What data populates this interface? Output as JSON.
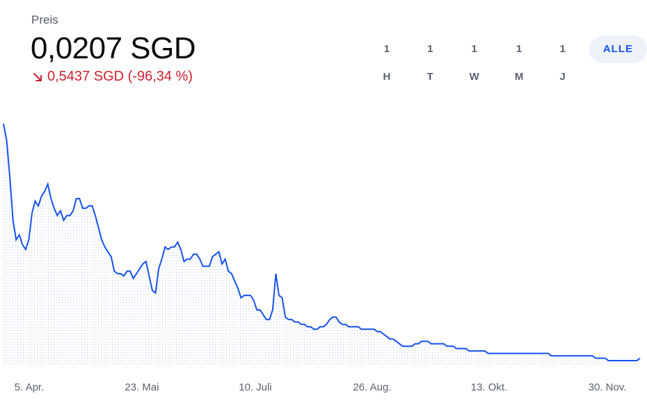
{
  "header": {
    "label": "Preis",
    "price": "0,0207 SGD",
    "change": "0,5437 SGD (-96,34 %)",
    "change_icon": "arrow-down-right-icon",
    "change_color": "#cf202f"
  },
  "tabs": [
    {
      "label": "1 H",
      "active": false
    },
    {
      "label": "1 T",
      "active": false
    },
    {
      "label": "1 W",
      "active": false
    },
    {
      "label": "1 M",
      "active": false
    },
    {
      "label": "1 J",
      "active": false
    },
    {
      "label": "ALLE",
      "active": true
    }
  ],
  "chart_data": {
    "type": "area",
    "line_color": "#1652f0",
    "x_tick_labels": [
      "5. Apr.",
      "23. Mai",
      "10. Juli",
      "26. Aug.",
      "13. Okt.",
      "30. Nov."
    ],
    "values": [
      100,
      93,
      78,
      60,
      52,
      54,
      50,
      48,
      52,
      63,
      68,
      66,
      70,
      72,
      75,
      69,
      65,
      62,
      64,
      60,
      62,
      62,
      64,
      69,
      69,
      65,
      65,
      66,
      66,
      62,
      57,
      52,
      49,
      47,
      45,
      39,
      38,
      38,
      37,
      39,
      39,
      36,
      38,
      40,
      42,
      43,
      37,
      31,
      30,
      40,
      44,
      49,
      48,
      49,
      49,
      51,
      48,
      43,
      44,
      44,
      46,
      46,
      44,
      41,
      41,
      41,
      45,
      46,
      47,
      42,
      44,
      39,
      38,
      35,
      32,
      28,
      29,
      29,
      29,
      27,
      23,
      23,
      21,
      19,
      19,
      23,
      38,
      29,
      28,
      20,
      19,
      19,
      18,
      18,
      17,
      17,
      16,
      16,
      15,
      15,
      16,
      16,
      17,
      19,
      20,
      20,
      18,
      17,
      17,
      16,
      16,
      16,
      16,
      15,
      15,
      15,
      15,
      15,
      14,
      14,
      13,
      12,
      11,
      11,
      10,
      9,
      8,
      8,
      8,
      8,
      9,
      9,
      10,
      10,
      10,
      9,
      9,
      9,
      9,
      9,
      8,
      8,
      8,
      7,
      7,
      7,
      7,
      6,
      6,
      6,
      6,
      6,
      6,
      5,
      5,
      5,
      5,
      5,
      5,
      5,
      5,
      5,
      5,
      5,
      5,
      5,
      5,
      5,
      5,
      5,
      5,
      5,
      5,
      4,
      4,
      4,
      4,
      4,
      4,
      4,
      4,
      4,
      4,
      4,
      4,
      4,
      4,
      3,
      3,
      3,
      3,
      2,
      2,
      2,
      2,
      2,
      2,
      2,
      2,
      2,
      2,
      3
    ]
  }
}
